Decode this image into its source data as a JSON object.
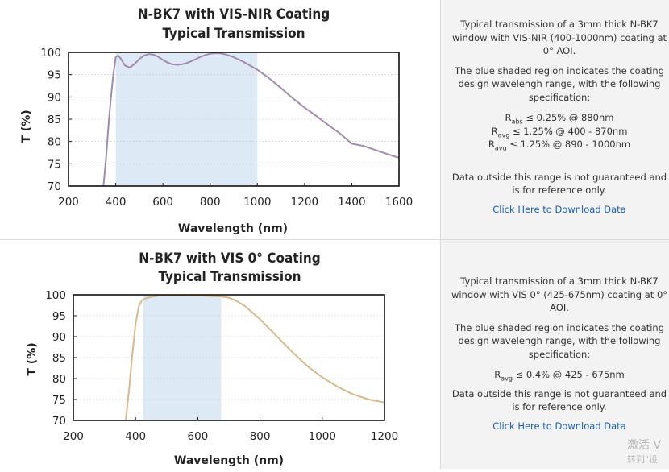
{
  "colors": {
    "shade": "#ddeaf6",
    "line_chart1": "#a38aae",
    "line_chart2": "#d6b98c",
    "axis": "#111111",
    "grid": "#c8c8c8",
    "link": "#1a5fb4"
  },
  "sections": [
    {
      "info": {
        "description": "Typical transmission of a 3mm thick N-BK7 window with VIS-NIR (400-1000nm) coating at 0° AOI.",
        "shade_note": "The blue shaded region indicates the coating design wavelengh range, with the following specification:",
        "specs": [
          {
            "symbol": "R",
            "sub": "abs",
            "text": "≤ 0.25% @ 880nm"
          },
          {
            "symbol": "R",
            "sub": "avg",
            "text": "≤ 1.25% @ 400 - 870nm"
          },
          {
            "symbol": "R",
            "sub": "avg",
            "text": "≤ 1.25% @ 890 - 1000nm"
          }
        ],
        "disclaimer": "Data outside this range is not guaranteed and is for reference only.",
        "download_label": "Click Here to Download Data"
      }
    },
    {
      "info": {
        "description": "Typical transmission of a 3mm thick N-BK7 window with VIS 0° (425-675nm) coating at 0° AOI.",
        "shade_note": "The blue shaded region indicates the coating design wavelengh range, with the following specification:",
        "specs": [
          {
            "symbol": "R",
            "sub": "avg",
            "text": "≤ 0.4% @ 425 - 675nm"
          }
        ],
        "disclaimer": "Data outside this range is not guaranteed and is for reference only.",
        "download_label": "Click Here to Download Data"
      }
    }
  ],
  "chart_data": [
    {
      "type": "line",
      "title": "N-BK7 with VIS-NIR Coating",
      "subtitle": "Typical Transmission",
      "xlabel": "Wavelength (nm)",
      "ylabel": "T (%)",
      "xlim": [
        200,
        1600
      ],
      "ylim": [
        70,
        100
      ],
      "xticks": [
        200,
        400,
        600,
        800,
        1000,
        1200,
        1400,
        1600
      ],
      "yticks": [
        70,
        75,
        80,
        85,
        90,
        95,
        100
      ],
      "shaded_range": [
        400,
        1000
      ],
      "grid": true,
      "series": [
        {
          "name": "VIS-NIR Coating",
          "x": [
            345,
            350,
            360,
            370,
            380,
            390,
            400,
            410,
            420,
            440,
            460,
            480,
            500,
            520,
            540,
            560,
            580,
            600,
            620,
            640,
            660,
            680,
            700,
            720,
            740,
            760,
            780,
            800,
            820,
            840,
            860,
            880,
            900,
            920,
            940,
            960,
            980,
            1000,
            1050,
            1100,
            1150,
            1200,
            1250,
            1300,
            1350,
            1400,
            1450,
            1500,
            1550,
            1600
          ],
          "y": [
            69,
            71,
            77,
            84,
            90,
            95,
            98.9,
            99.3,
            98.7,
            97.0,
            96.6,
            97.4,
            98.5,
            99.3,
            99.6,
            99.5,
            99.0,
            98.3,
            97.7,
            97.3,
            97.2,
            97.3,
            97.6,
            98.0,
            98.5,
            99.0,
            99.4,
            99.7,
            99.8,
            99.8,
            99.6,
            99.3,
            98.9,
            98.4,
            97.9,
            97.3,
            96.7,
            96.1,
            94.2,
            92.0,
            89.7,
            87.6,
            85.7,
            83.7,
            81.8,
            79.5,
            79.0,
            78.1,
            77.2,
            76.3
          ]
        }
      ]
    },
    {
      "type": "line",
      "title": "N-BK7 with VIS 0° Coating",
      "subtitle": "Typical Transmission",
      "xlabel": "Wavelength (nm)",
      "ylabel": "T (%)",
      "xlim": [
        200,
        1200
      ],
      "ylim": [
        70,
        100
      ],
      "xticks": [
        200,
        400,
        600,
        800,
        1000,
        1200
      ],
      "yticks": [
        70,
        75,
        80,
        85,
        90,
        95,
        100
      ],
      "shaded_range": [
        425,
        675
      ],
      "grid": true,
      "series": [
        {
          "name": "VIS 0° Coating",
          "x": [
            365,
            370,
            380,
            390,
            400,
            410,
            420,
            430,
            450,
            475,
            500,
            550,
            600,
            650,
            675,
            700,
            725,
            750,
            800,
            850,
            900,
            950,
            1000,
            1050,
            1100,
            1150,
            1200
          ],
          "y": [
            69,
            71,
            78,
            86,
            93,
            97.2,
            98.6,
            99.1,
            99.5,
            99.8,
            99.9,
            99.9,
            99.8,
            99.7,
            99.6,
            99.3,
            98.5,
            97.4,
            94.2,
            90.4,
            86.6,
            83.1,
            80.3,
            78.0,
            76.2,
            75.0,
            74.3
          ]
        }
      ]
    }
  ],
  "watermark": {
    "line1": "激活 V",
    "line2": "转到\"设"
  }
}
